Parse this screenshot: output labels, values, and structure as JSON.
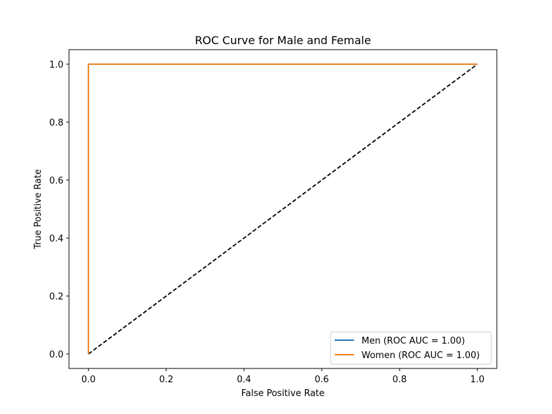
{
  "chart_data": {
    "type": "line",
    "title": "ROC Curve for Male and Female",
    "xlabel": "False Positive Rate",
    "ylabel": "True Positive Rate",
    "xlim": [
      -0.05,
      1.05
    ],
    "ylim": [
      -0.05,
      1.05
    ],
    "xticks": [
      0.0,
      0.2,
      0.4,
      0.6,
      0.8,
      1.0
    ],
    "yticks": [
      0.0,
      0.2,
      0.4,
      0.6,
      0.8,
      1.0
    ],
    "xtick_labels": [
      "0.0",
      "0.2",
      "0.4",
      "0.6",
      "0.8",
      "1.0"
    ],
    "ytick_labels": [
      "0.0",
      "0.2",
      "0.4",
      "0.6",
      "0.8",
      "1.0"
    ],
    "grid": false,
    "legend_position": "lower-right",
    "series": [
      {
        "name": "Men (ROC AUC = 1.00)",
        "color": "#1f77b4",
        "style": "solid",
        "x": [
          0.0,
          0.0,
          1.0
        ],
        "y": [
          0.0,
          1.0,
          1.0
        ]
      },
      {
        "name": "Women (ROC AUC = 1.00)",
        "color": "#ff7f0e",
        "style": "solid",
        "x": [
          0.0,
          0.0,
          1.0
        ],
        "y": [
          0.0,
          1.0,
          1.0
        ]
      }
    ],
    "reference_line": {
      "color": "#000000",
      "style": "dashed",
      "x": [
        0.0,
        1.0
      ],
      "y": [
        0.0,
        1.0
      ]
    }
  }
}
